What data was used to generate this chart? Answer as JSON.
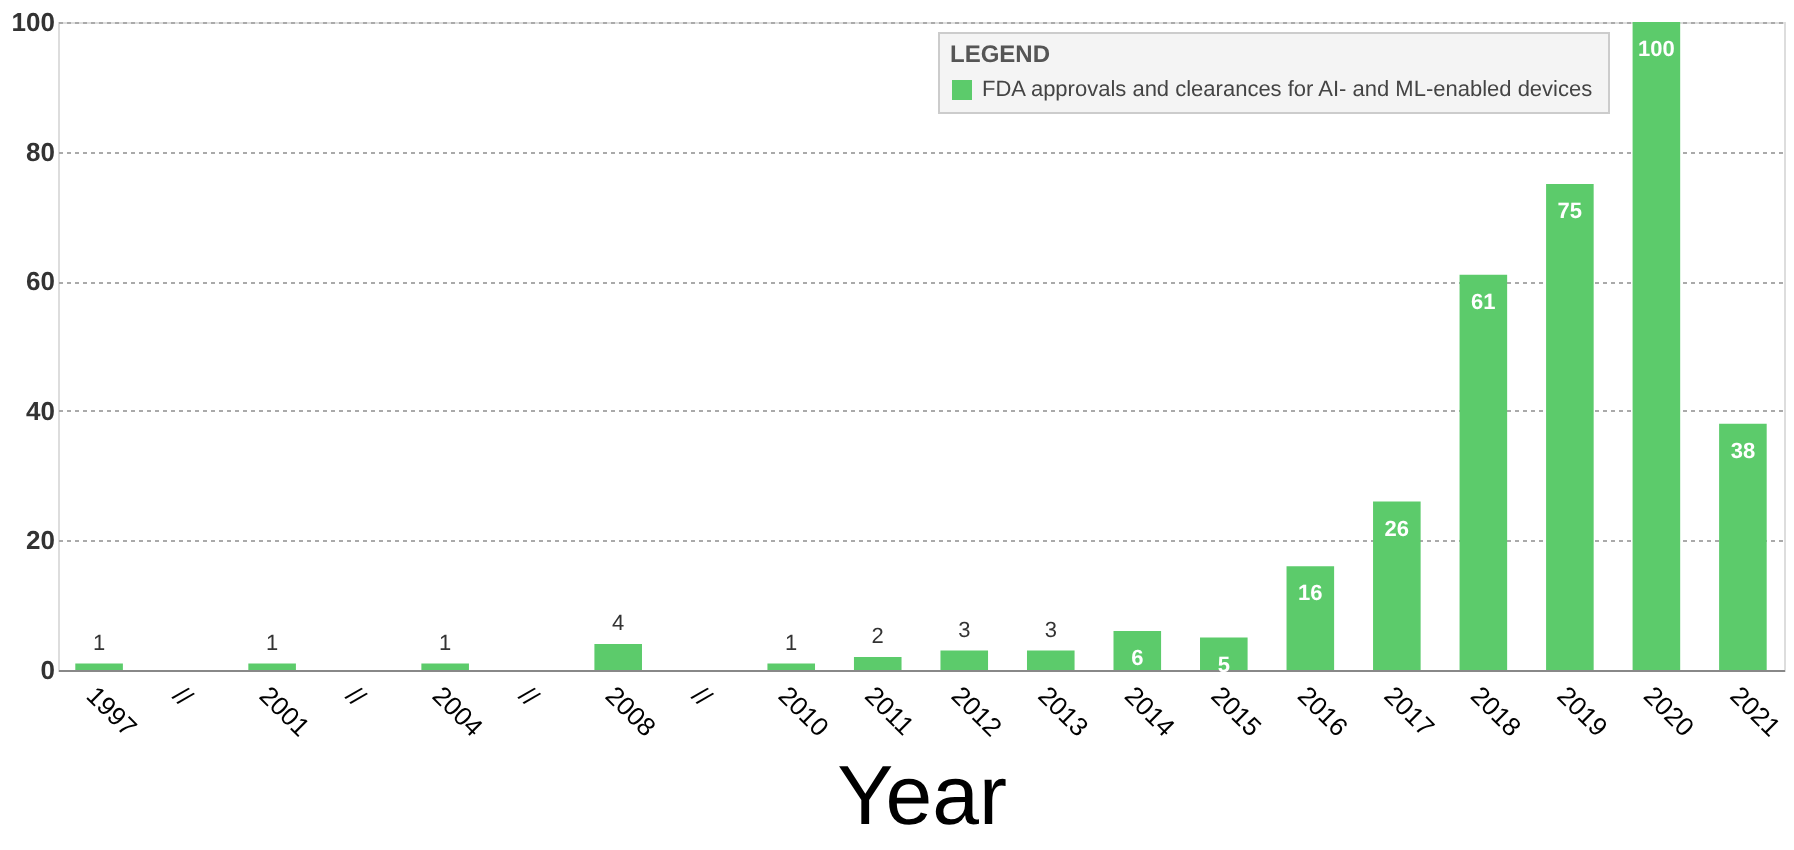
{
  "chart_data": {
    "type": "bar",
    "xlabel": "Year",
    "legend_title": "LEGEND",
    "categories": [
      "1997",
      "//",
      "2001",
      "//",
      "2004",
      "//",
      "2008",
      "//",
      "2010",
      "2011",
      "2012",
      "2013",
      "2014",
      "2015",
      "2016",
      "2017",
      "2018",
      "2019",
      "2020",
      "2021"
    ],
    "series": [
      {
        "name": "FDA approvals and clearances for AI- and ML-enabled devices",
        "color": "#5ccb6b",
        "values": [
          1,
          null,
          1,
          null,
          1,
          null,
          4,
          null,
          1,
          2,
          3,
          3,
          6,
          5,
          16,
          26,
          61,
          75,
          100,
          38
        ]
      }
    ],
    "ylim": [
      0,
      100
    ],
    "yticks": [
      0,
      20,
      40,
      60,
      80,
      100
    ],
    "grid": "y",
    "legend": "top",
    "data_labels": true
  }
}
